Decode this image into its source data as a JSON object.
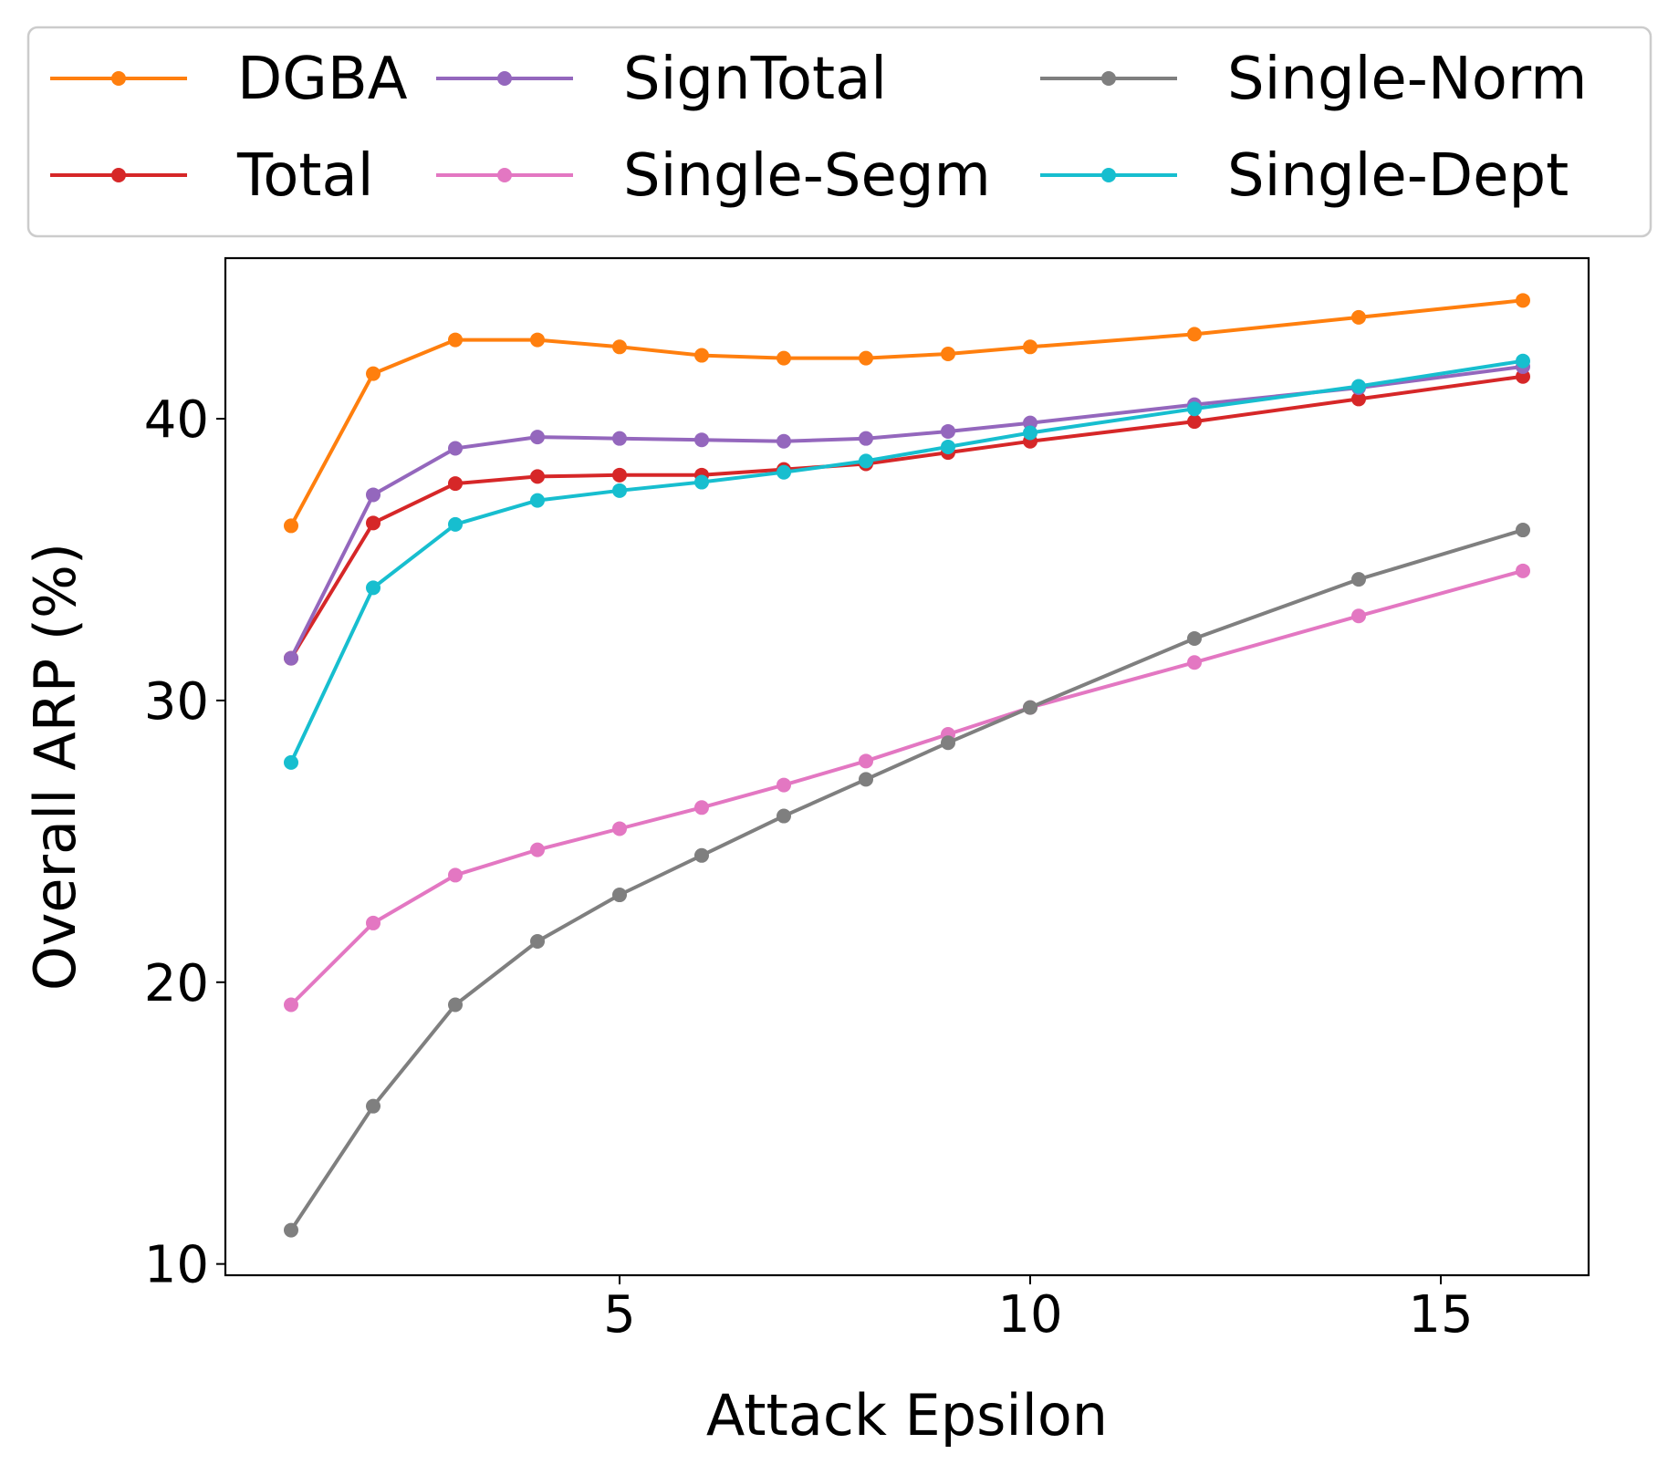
{
  "chart_data": {
    "type": "line",
    "title": "",
    "xlabel": "Attack Epsilon",
    "ylabel": "Overall ARP (%)",
    "xlim": [
      0.2,
      16.8
    ],
    "ylim": [
      9.6,
      45.7
    ],
    "xticks": [
      5,
      10,
      15
    ],
    "yticks": [
      10,
      20,
      30,
      40
    ],
    "grid": false,
    "legend_position": "top, outside plot, 3 columns",
    "x": [
      1,
      2,
      3,
      4,
      5,
      6,
      7,
      8,
      9,
      10,
      12,
      14,
      16
    ],
    "series": [
      {
        "name": "DGBA",
        "color": "#ff7f0e",
        "values": [
          36.2,
          41.6,
          42.8,
          42.8,
          42.55,
          42.25,
          42.15,
          42.15,
          42.3,
          42.55,
          43.0,
          43.6,
          44.2
        ]
      },
      {
        "name": "Total",
        "color": "#d62728",
        "values": [
          31.5,
          36.3,
          37.7,
          37.95,
          38.0,
          38.0,
          38.2,
          38.4,
          38.8,
          39.2,
          39.9,
          40.7,
          41.5
        ]
      },
      {
        "name": "SignTotal",
        "color": "#9467bd",
        "values": [
          31.5,
          37.3,
          38.95,
          39.35,
          39.3,
          39.25,
          39.2,
          39.3,
          39.55,
          39.85,
          40.5,
          41.1,
          41.85
        ]
      },
      {
        "name": "Single-Segm",
        "color": "#e377c2",
        "values": [
          19.2,
          22.1,
          23.8,
          24.7,
          25.45,
          26.2,
          27.0,
          27.85,
          28.8,
          29.75,
          31.35,
          33.0,
          34.6
        ]
      },
      {
        "name": "Single-Norm",
        "color": "#7f7f7f",
        "values": [
          11.2,
          15.6,
          19.2,
          21.45,
          23.1,
          24.5,
          25.9,
          27.2,
          28.5,
          29.75,
          32.2,
          34.3,
          36.05
        ]
      },
      {
        "name": "Single-Dept",
        "color": "#17becf",
        "values": [
          27.8,
          34.0,
          36.25,
          37.1,
          37.45,
          37.75,
          38.1,
          38.5,
          39.0,
          39.5,
          40.35,
          41.15,
          42.05
        ]
      }
    ]
  }
}
